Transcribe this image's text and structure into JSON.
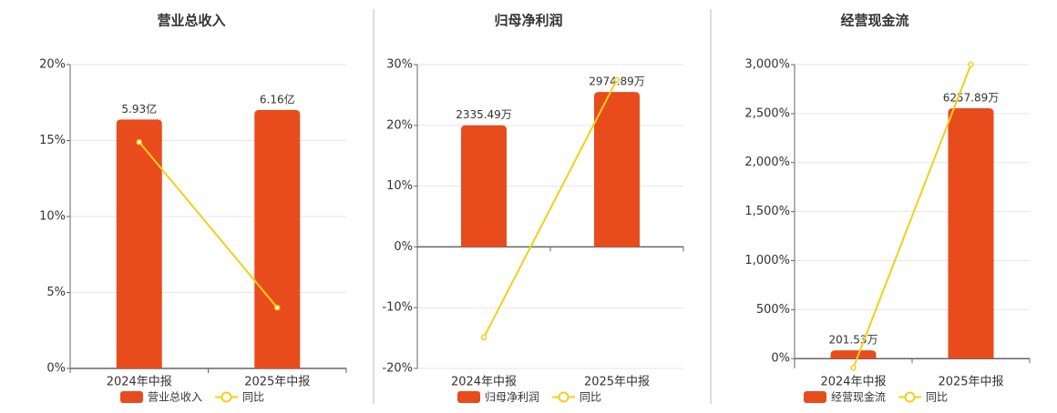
{
  "chart_data": [
    {
      "type": "combo",
      "title": "营业总收入",
      "categories": [
        "2024年中报",
        "2025年中报"
      ],
      "ylim": [
        0,
        20
      ],
      "yticks": [
        {
          "value": 0,
          "label": "0%"
        },
        {
          "value": 5,
          "label": "5%"
        },
        {
          "value": 10,
          "label": "10%"
        },
        {
          "value": 15,
          "label": "15%"
        },
        {
          "value": 20,
          "label": "20%"
        }
      ],
      "y2lim": [
        0,
        7.24
      ],
      "series": [
        {
          "name": "营业总收入",
          "type": "bar",
          "axis": "y2",
          "color": "#e84c1c",
          "values": [
            5.93,
            6.16
          ],
          "value_labels": [
            "5.93亿",
            "6.16亿"
          ]
        },
        {
          "name": "同比",
          "type": "line",
          "color": "#f2cf1a",
          "values": [
            14.9,
            4.0
          ]
        }
      ],
      "grid": true,
      "legend": "bottom"
    },
    {
      "type": "combo",
      "title": "归母净利润",
      "categories": [
        "2024年中报",
        "2025年中报"
      ],
      "ylim": [
        -20,
        30
      ],
      "yticks": [
        {
          "value": -20,
          "label": "-20%"
        },
        {
          "value": -10,
          "label": "-10%"
        },
        {
          "value": 0,
          "label": "0%"
        },
        {
          "value": 10,
          "label": "10%"
        },
        {
          "value": 20,
          "label": "20%"
        },
        {
          "value": 30,
          "label": "30%"
        }
      ],
      "y2lim": [
        -2330,
        3500
      ],
      "series": [
        {
          "name": "归母净利润",
          "type": "bar",
          "axis": "y2",
          "color": "#e84c1c",
          "values": [
            2335.49,
            2974.89
          ],
          "value_labels": [
            "2335.49万",
            "2974.89万"
          ]
        },
        {
          "name": "同比",
          "type": "line",
          "color": "#f2cf1a",
          "values": [
            -14.9,
            27.5
          ]
        }
      ],
      "grid": true,
      "legend": "bottom"
    },
    {
      "type": "combo",
      "title": "经营现金流",
      "categories": [
        "2024年中报",
        "2025年中报"
      ],
      "ylim": [
        -100,
        3000
      ],
      "yticks": [
        {
          "value": 0,
          "label": "0%"
        },
        {
          "value": 500,
          "label": "500%"
        },
        {
          "value": 1000,
          "label": "1,000%"
        },
        {
          "value": 1500,
          "label": "1,500%"
        },
        {
          "value": 2000,
          "label": "2,000%"
        },
        {
          "value": 2500,
          "label": "2,500%"
        },
        {
          "value": 3000,
          "label": "3,000%"
        }
      ],
      "y2lim": [
        -250,
        7350
      ],
      "series": [
        {
          "name": "经营现金流",
          "type": "bar",
          "axis": "y2",
          "color": "#e84c1c",
          "values": [
            201.53,
            6257.89
          ],
          "value_labels": [
            "201.53万",
            "6257.89万"
          ]
        },
        {
          "name": "同比",
          "type": "line",
          "color": "#f2cf1a",
          "values": [
            -93,
            3000
          ]
        }
      ],
      "grid": true,
      "legend": "bottom"
    }
  ]
}
